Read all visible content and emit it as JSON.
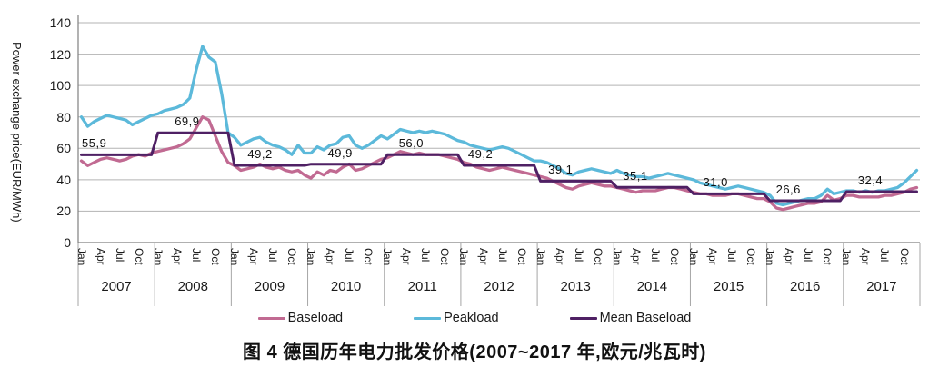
{
  "caption": "图 4  德国历年电力批发价格(2007~2017 年,欧元/兆瓦时)",
  "y_axis": {
    "label": "Power exchange price(EUR/MWh)",
    "ticks": [
      "140",
      "120",
      "100",
      "80",
      "60",
      "40",
      "20",
      "0"
    ]
  },
  "x_axis": {
    "month_labels": [
      "Jan",
      "Apr",
      "Jul",
      "Oct"
    ],
    "years": [
      "2007",
      "2008",
      "2009",
      "2010",
      "2011",
      "2012",
      "2013",
      "2014",
      "2015",
      "2016",
      "2017"
    ]
  },
  "legend": {
    "items": [
      {
        "label": "Baseload",
        "color": "#c16a92"
      },
      {
        "label": "Peakload",
        "color": "#5cb9da"
      },
      {
        "label": "Mean Baseload",
        "color": "#4f2064"
      }
    ]
  },
  "colors": {
    "baseload": "#c16a92",
    "peakload": "#5cb9da",
    "mean_baseload": "#4f2064",
    "gridline": "#b3b3b3",
    "axis": "#808080",
    "year_separator": "#a6a6a6",
    "background": "#ffffff"
  },
  "chart_data": {
    "type": "line",
    "title": "图 4 德国历年电力批发价格(2007~2017 年,欧元/兆瓦时)",
    "ylabel": "Power exchange price(EUR/MWh)",
    "ylim": [
      0,
      140
    ],
    "ytick_step": 20,
    "grid": "horizontal",
    "legend_position": "bottom",
    "x_unit": "month",
    "x_range": "2007-01 to 2017-12",
    "x_tick_months": [
      "Jan",
      "Apr",
      "Jul",
      "Oct"
    ],
    "year_groups": [
      "2007",
      "2008",
      "2009",
      "2010",
      "2011",
      "2012",
      "2013",
      "2014",
      "2015",
      "2016",
      "2017"
    ],
    "series": [
      {
        "name": "Baseload",
        "color": "#c16a92",
        "values": [
          52,
          49,
          51,
          53,
          54,
          53,
          52,
          53,
          55,
          56,
          55,
          57,
          58,
          59,
          60,
          61,
          63,
          66,
          73,
          80,
          78,
          68,
          58,
          51,
          49,
          46,
          47,
          48,
          50,
          48,
          47,
          48,
          46,
          45,
          46,
          43,
          41,
          45,
          43,
          46,
          45,
          48,
          50,
          46,
          47,
          49,
          51,
          53,
          54,
          56,
          58,
          57,
          56,
          57,
          56,
          56,
          56,
          55,
          54,
          53,
          51,
          50,
          48,
          47,
          46,
          47,
          48,
          47,
          46,
          45,
          44,
          43,
          42,
          41,
          39,
          37,
          35,
          34,
          36,
          37,
          38,
          37,
          36,
          36,
          35,
          34,
          33,
          32,
          33,
          33,
          33,
          34,
          35,
          35,
          34,
          33,
          32,
          31,
          31,
          30,
          30,
          30,
          31,
          31,
          30,
          29,
          28,
          28,
          26,
          22,
          21,
          22,
          23,
          24,
          25,
          25,
          26,
          30,
          27,
          28,
          30,
          30,
          29,
          29,
          29,
          29,
          30,
          30,
          31,
          32,
          34,
          35
        ]
      },
      {
        "name": "Peakload",
        "color": "#5cb9da",
        "values": [
          80,
          74,
          77,
          79,
          81,
          80,
          79,
          78,
          75,
          77,
          79,
          81,
          82,
          84,
          85,
          86,
          88,
          92,
          110,
          125,
          118,
          115,
          95,
          70,
          67,
          62,
          64,
          66,
          67,
          64,
          62,
          61,
          59,
          56,
          62,
          57,
          57,
          61,
          59,
          62,
          63,
          67,
          68,
          62,
          60,
          62,
          65,
          68,
          66,
          69,
          72,
          71,
          70,
          71,
          70,
          71,
          70,
          69,
          67,
          65,
          64,
          62,
          61,
          60,
          59,
          60,
          61,
          60,
          58,
          56,
          54,
          52,
          52,
          51,
          49,
          47,
          44,
          43,
          45,
          46,
          47,
          46,
          45,
          44,
          46,
          44,
          43,
          42,
          42,
          41,
          42,
          43,
          44,
          43,
          42,
          41,
          40,
          38,
          37,
          36,
          35,
          34,
          35,
          36,
          35,
          34,
          33,
          32,
          30,
          25,
          24,
          25,
          26,
          27,
          28,
          28,
          30,
          34,
          31,
          32,
          33,
          33,
          32,
          33,
          32,
          33,
          33,
          34,
          35,
          38,
          42,
          46
        ]
      },
      {
        "name": "Mean Baseload",
        "color": "#4f2064",
        "style": "yearly-step",
        "yearly_values": [
          55.9,
          69.9,
          49.2,
          49.9,
          56.0,
          49.2,
          39.1,
          35.1,
          31.0,
          26.6,
          32.4
        ]
      }
    ],
    "annotations": [
      {
        "year": "2007",
        "label": "55,9",
        "value": 55.9
      },
      {
        "year": "2008",
        "label": "69,9",
        "value": 69.9
      },
      {
        "year": "2009",
        "label": "49,2",
        "value": 49.2
      },
      {
        "year": "2010",
        "label": "49,9",
        "value": 49.9
      },
      {
        "year": "2011",
        "label": "56,0",
        "value": 56.0
      },
      {
        "year": "2012",
        "label": "49,2",
        "value": 49.2
      },
      {
        "year": "2013",
        "label": "39,1",
        "value": 39.1
      },
      {
        "year": "2014",
        "label": "35,1",
        "value": 35.1
      },
      {
        "year": "2015",
        "label": "31,0",
        "value": 31.0
      },
      {
        "year": "2016",
        "label": "26,6",
        "value": 26.6
      },
      {
        "year": "2017",
        "label": "32,4",
        "value": 32.4
      }
    ]
  }
}
